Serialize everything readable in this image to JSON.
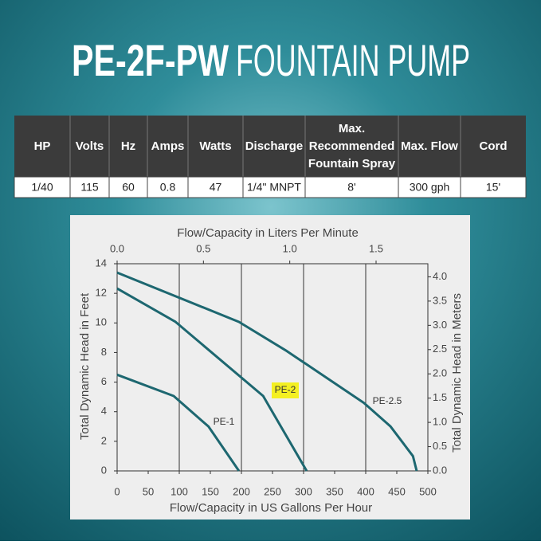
{
  "header": {
    "title_model": "PE-2F-PW",
    "title_rest": "FOUNTAIN PUMP"
  },
  "table": {
    "headers": [
      [
        "HP"
      ],
      [
        "Volts"
      ],
      [
        "Hz"
      ],
      [
        "Amps"
      ],
      [
        "Watts"
      ],
      [
        "Discharge"
      ],
      [
        "Max.",
        "Recommended",
        "Fountain Spray"
      ],
      [
        "Max. Flow"
      ],
      [
        "Cord"
      ]
    ],
    "rows": [
      [
        "1/40",
        "115",
        "60",
        "0.8",
        "47",
        "1/4\" MNPT",
        "8'",
        "300 gph",
        "15'"
      ]
    ]
  },
  "chart_data": {
    "type": "line",
    "x_label": "Flow/Capacity in US Gallons Per Hour",
    "x2_label": "Flow/Capacity in Liters Per Minute",
    "y_label": "Total Dynamic Head in Feet",
    "y2_label": "Total Dynamic Head in Meters",
    "xlim": [
      0,
      500
    ],
    "xticks": [
      0,
      50,
      100,
      150,
      200,
      250,
      300,
      350,
      400,
      450,
      500
    ],
    "x2lim": [
      0,
      1.8
    ],
    "x2ticks": [
      {
        "value": 0,
        "label": "0.0"
      },
      0.5,
      {
        "value": 1,
        "label": "1.0"
      },
      1.5
    ],
    "ylim": [
      0,
      14
    ],
    "yticks": [
      0,
      2,
      4,
      6,
      8,
      10,
      12,
      14
    ],
    "y2lim": [
      0,
      4.27
    ],
    "y2ticks": [
      {
        "value": 0,
        "label": "0.0"
      },
      0.5,
      {
        "value": 1,
        "label": "1.0"
      },
      1.5,
      {
        "value": 2,
        "label": "2.0"
      },
      2.5,
      {
        "value": 3,
        "label": "3.0"
      },
      3.5,
      {
        "value": 4,
        "label": "4.0"
      }
    ],
    "grid": true,
    "series": [
      {
        "name": "PE-1",
        "color": "#1d6770",
        "x": [
          0,
          91,
          147,
          196
        ],
        "values": [
          6.5,
          5.06,
          3.0,
          0
        ]
      },
      {
        "name": "PE-2",
        "color": "#1d6770",
        "highlight": "#f4f022",
        "x": [
          0,
          94,
          235,
          305
        ],
        "values": [
          12.33,
          10.07,
          5.06,
          0
        ]
      },
      {
        "name": "PE-2.5",
        "color": "#1d6770",
        "x": [
          0,
          196,
          273,
          397,
          440,
          476,
          482
        ],
        "values": [
          13.4,
          10.07,
          8.1,
          4.6,
          3.0,
          1.0,
          0
        ]
      }
    ]
  }
}
